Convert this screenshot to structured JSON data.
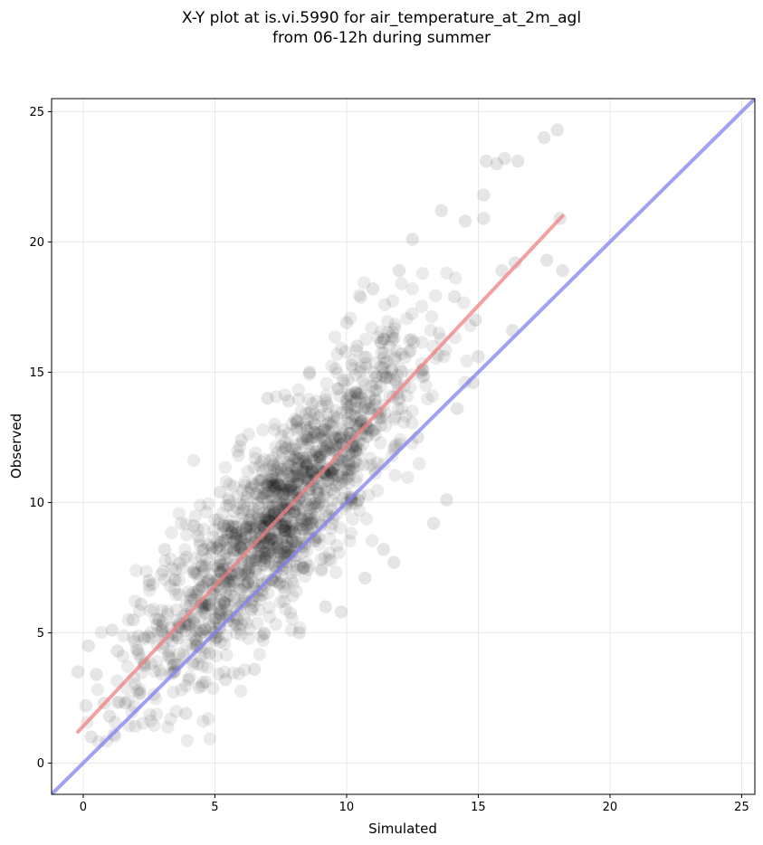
{
  "chart_data": {
    "type": "scatter",
    "title": "X-Y plot at is.vi.5990 for air_temperature_at_2m_agl",
    "subtitle": "from 06-12h during summer",
    "xlabel": "Simulated",
    "ylabel": "Observed",
    "xlim": [
      -1.2,
      25.5
    ],
    "ylim": [
      -1.2,
      25.5
    ],
    "xticks": [
      0,
      5,
      10,
      15,
      20,
      25
    ],
    "yticks": [
      0,
      5,
      10,
      15,
      20,
      25
    ],
    "grid": true,
    "point_color": "#000000",
    "point_opacity": 0.08,
    "fit_line": {
      "color": "#f08080",
      "x": [
        -0.2,
        18.2
      ],
      "y": [
        1.2,
        21.0
      ]
    },
    "identity_line": {
      "color": "#8080f0",
      "x": [
        -1.2,
        25.5
      ],
      "y": [
        -1.2,
        25.5
      ]
    },
    "highlight_points": [
      [
        -0.2,
        3.5
      ],
      [
        0.2,
        4.5
      ],
      [
        0.1,
        2.2
      ],
      [
        0.3,
        1.0
      ],
      [
        0.5,
        3.4
      ],
      [
        0.8,
        2.3
      ],
      [
        1.0,
        1.8
      ],
      [
        1.1,
        5.1
      ],
      [
        1.3,
        4.3
      ],
      [
        1.6,
        2.3
      ],
      [
        1.9,
        5.5
      ],
      [
        2.1,
        4.2
      ],
      [
        2.2,
        6.1
      ],
      [
        2.5,
        7.0
      ],
      [
        3.1,
        8.2
      ],
      [
        3.3,
        5.2
      ],
      [
        3.6,
        4.8
      ],
      [
        3.9,
        1.9
      ],
      [
        4.0,
        3.2
      ],
      [
        4.2,
        9.1
      ],
      [
        4.4,
        2.9
      ],
      [
        4.8,
        4.2
      ],
      [
        5.2,
        10.4
      ],
      [
        5.4,
        3.2
      ],
      [
        6.0,
        12.4
      ],
      [
        6.5,
        3.6
      ],
      [
        7.0,
        14.0
      ],
      [
        7.8,
        13.9
      ],
      [
        8.2,
        5.0
      ],
      [
        8.6,
        15.0
      ],
      [
        9.2,
        6.0
      ],
      [
        9.8,
        5.8
      ],
      [
        10.0,
        16.9
      ],
      [
        10.4,
        16.0
      ],
      [
        10.7,
        7.1
      ],
      [
        11.0,
        18.2
      ],
      [
        11.4,
        8.2
      ],
      [
        11.8,
        7.7
      ],
      [
        12.0,
        18.9
      ],
      [
        12.5,
        20.1
      ],
      [
        12.7,
        12.5
      ],
      [
        13.3,
        9.2
      ],
      [
        13.6,
        21.2
      ],
      [
        13.8,
        10.1
      ],
      [
        14.2,
        13.6
      ],
      [
        14.5,
        20.8
      ],
      [
        14.8,
        14.6
      ],
      [
        15.0,
        15.6
      ],
      [
        15.2,
        21.8
      ],
      [
        15.3,
        23.1
      ],
      [
        15.7,
        23.0
      ],
      [
        16.0,
        23.2
      ],
      [
        16.3,
        16.6
      ],
      [
        16.5,
        23.1
      ],
      [
        17.5,
        24.0
      ],
      [
        17.6,
        19.3
      ],
      [
        18.0,
        24.3
      ],
      [
        18.1,
        20.9
      ],
      [
        18.2,
        18.9
      ],
      [
        15.9,
        18.9
      ],
      [
        16.4,
        19.2
      ],
      [
        15.2,
        20.9
      ],
      [
        14.1,
        17.9
      ],
      [
        14.9,
        17.0
      ]
    ],
    "bulk_trend": {
      "slope": 1.08,
      "intercept": 1.4,
      "x_center": 7.5,
      "x_spread": 2.6,
      "x_range": [
        0,
        15.6
      ],
      "y_noise": 1.7,
      "n_points": 1500
    }
  }
}
